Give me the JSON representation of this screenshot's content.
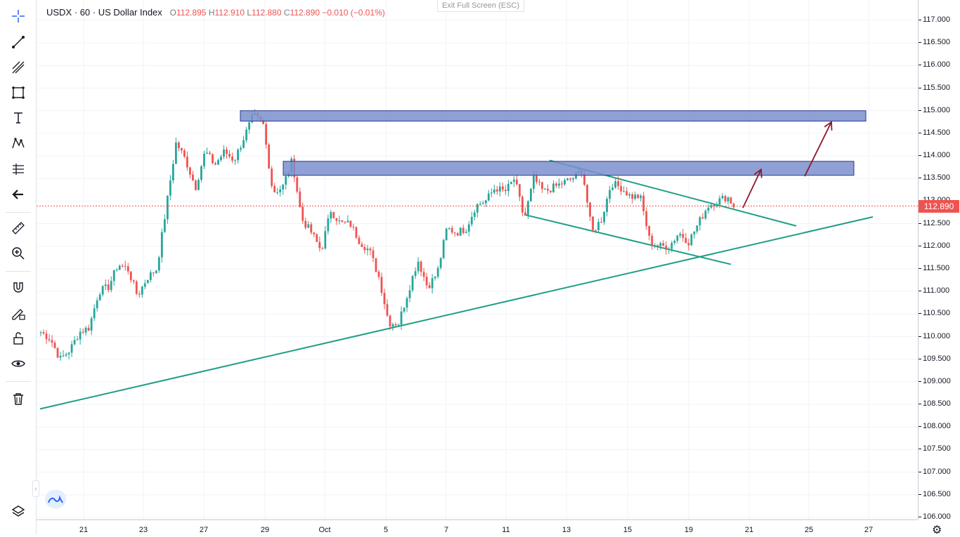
{
  "legend": {
    "symbol": "USDX",
    "interval": "60",
    "name": "US Dollar Index",
    "open_label": "O",
    "open": "112.895",
    "high_label": "H",
    "high": "112.910",
    "low_label": "L",
    "low": "112.880",
    "close_label": "C",
    "close": "112.890",
    "change": "−0.010",
    "change_pct": "(−0.01%)"
  },
  "exit_fullscreen_label": "Exit Full Screen (ESC)",
  "current_price_label": "112.890",
  "toolbar": {
    "tools": [
      "crosshair-icon",
      "trend-line-icon",
      "fib-icon",
      "rectangle-icon",
      "text-icon",
      "pattern-icon",
      "prediction-icon",
      "back-arrow-icon",
      "ruler-icon",
      "zoom-in-icon",
      "magnet-icon",
      "pencil-lock-icon",
      "lock-icon",
      "eye-icon",
      "trash-icon",
      "layers-icon"
    ]
  },
  "colors": {
    "up": "#26a69a",
    "down": "#ef5350",
    "zone_fill": "#7b8fcc",
    "zone_stroke": "#2a3a8c",
    "trendline": "#1e9e86",
    "arrow": "#8b1a2b",
    "price_line": "#ef5350"
  },
  "chart_data": {
    "type": "candlestick",
    "symbol": "USDX",
    "interval": "60",
    "title": "US Dollar Index",
    "ylim": [
      105.85,
      117.3
    ],
    "y_ticks": [
      "117.000",
      "116.500",
      "116.000",
      "115.500",
      "115.000",
      "114.500",
      "114.000",
      "113.500",
      "113.000",
      "112.500",
      "112.000",
      "111.500",
      "111.000",
      "110.500",
      "110.000",
      "109.500",
      "109.000",
      "108.500",
      "108.000",
      "107.500",
      "107.000",
      "106.500",
      "106.000"
    ],
    "x_ticks": [
      "21",
      "23",
      "27",
      "29",
      "Oct",
      "5",
      "7",
      "11",
      "13",
      "15",
      "19",
      "21",
      "25",
      "27"
    ],
    "last_price": 112.89,
    "price_path_keypoints": [
      [
        0,
        110.1
      ],
      [
        3,
        109.95
      ],
      [
        6,
        109.5
      ],
      [
        9,
        109.7
      ],
      [
        12,
        110.1
      ],
      [
        15,
        110.2
      ],
      [
        18,
        111.0
      ],
      [
        21,
        111.1
      ],
      [
        24,
        111.6
      ],
      [
        27,
        111.5
      ],
      [
        30,
        110.9
      ],
      [
        33,
        111.3
      ],
      [
        36,
        111.5
      ],
      [
        39,
        112.9
      ],
      [
        42,
        114.3
      ],
      [
        45,
        113.9
      ],
      [
        48,
        113.3
      ],
      [
        51,
        114.1
      ],
      [
        54,
        113.8
      ],
      [
        57,
        114.1
      ],
      [
        60,
        113.9
      ],
      [
        63,
        114.4
      ],
      [
        66,
        114.9
      ],
      [
        69,
        114.7
      ],
      [
        72,
        113.2
      ],
      [
        75,
        113.3
      ],
      [
        78,
        113.9
      ],
      [
        81,
        112.6
      ],
      [
        84,
        112.3
      ],
      [
        87,
        111.9
      ],
      [
        90,
        112.8
      ],
      [
        93,
        112.5
      ],
      [
        96,
        112.5
      ],
      [
        99,
        112.1
      ],
      [
        102,
        111.9
      ],
      [
        105,
        111.3
      ],
      [
        108,
        110.3
      ],
      [
        111,
        110.3
      ],
      [
        114,
        111.0
      ],
      [
        117,
        111.7
      ],
      [
        120,
        111.1
      ],
      [
        123,
        111.4
      ],
      [
        126,
        112.4
      ],
      [
        129,
        112.3
      ],
      [
        132,
        112.4
      ],
      [
        135,
        112.9
      ],
      [
        138,
        113.0
      ],
      [
        141,
        113.3
      ],
      [
        144,
        113.2
      ],
      [
        147,
        113.5
      ],
      [
        150,
        112.6
      ],
      [
        153,
        113.5
      ],
      [
        156,
        113.2
      ],
      [
        159,
        113.3
      ],
      [
        162,
        113.4
      ],
      [
        165,
        113.5
      ],
      [
        168,
        113.7
      ],
      [
        171,
        112.3
      ],
      [
        174,
        112.6
      ],
      [
        177,
        113.4
      ],
      [
        180,
        113.3
      ],
      [
        183,
        113.1
      ],
      [
        186,
        113.1
      ],
      [
        189,
        112.1
      ],
      [
        192,
        112.0
      ],
      [
        195,
        112.0
      ],
      [
        198,
        112.3
      ],
      [
        201,
        112.1
      ],
      [
        204,
        112.5
      ],
      [
        207,
        112.9
      ],
      [
        210,
        113.0
      ],
      [
        213,
        113.1
      ],
      [
        215,
        112.89
      ]
    ],
    "annotations": {
      "resistance_zones": [
        {
          "price_top": 115.0,
          "price_bottom": 114.77,
          "from_bar": 67,
          "to_date": "27"
        },
        {
          "price_top": 113.88,
          "price_bottom": 113.57,
          "from_bar": 79,
          "to_date": "26"
        }
      ],
      "trendlines": [
        {
          "name": "rising-support",
          "from": [
            "Sep 19",
            108.4
          ],
          "to": [
            "Oct 27",
            112.65
          ]
        },
        {
          "name": "channel-top",
          "from": [
            "Oct 12",
            113.9
          ],
          "to": [
            "Oct 24",
            112.45
          ]
        },
        {
          "name": "channel-bottom",
          "from": [
            "Oct 11",
            112.7
          ],
          "to": [
            "Oct 23",
            111.6
          ]
        }
      ],
      "arrows": [
        {
          "from": [
            "Oct 21",
            112.85
          ],
          "to": [
            "Oct 21",
            113.7
          ]
        },
        {
          "from": [
            "Oct 25",
            113.55
          ],
          "to": [
            "Oct 25",
            114.75
          ]
        }
      ]
    }
  }
}
